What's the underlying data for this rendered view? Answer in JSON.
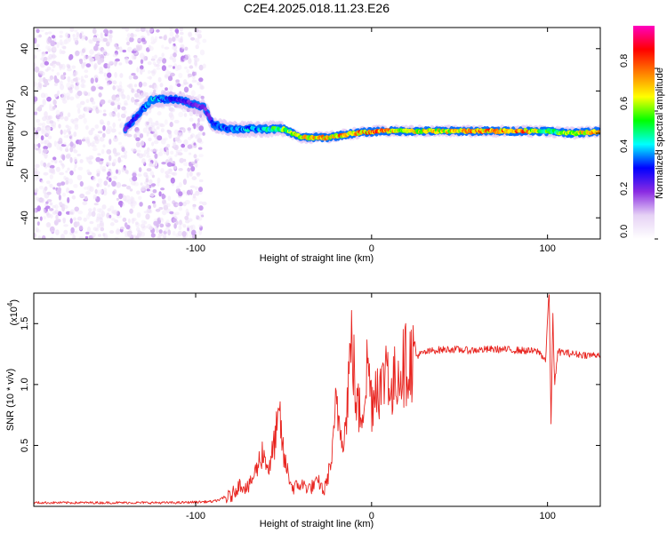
{
  "title": "C2E4.2025.018.11.23.E26",
  "chart_data": [
    {
      "type": "heatmap",
      "title": "C2E4.2025.018.11.23.E26",
      "xlabel": "Height of straight line (km)",
      "ylabel": "Frequency (Hz)",
      "xlim": [
        -192,
        130
      ],
      "ylim": [
        -50,
        50
      ],
      "x_ticks": [
        -100,
        0,
        100
      ],
      "y_ticks": [
        -40,
        -20,
        0,
        20,
        40
      ],
      "grid": false,
      "colorbar": {
        "label": "Normalized spectral amplitude",
        "range": [
          0,
          1
        ],
        "ticks": [
          "0.0",
          "0.2",
          "0.4",
          "0.6",
          "0.8"
        ],
        "tick_values": [
          0,
          0.2,
          0.4,
          0.6,
          0.8
        ],
        "colors": [
          "#ffffff",
          "#e6d2f5",
          "#8a2be2",
          "#0000ff",
          "#00ffff",
          "#00ff00",
          "#ffff00",
          "#ff8000",
          "#ff0000",
          "#ff00c0"
        ]
      },
      "noise_region": {
        "x_from": -192,
        "x_to": -95,
        "freq_from": -50,
        "freq_to": 50,
        "amplitude": 0.12
      },
      "ridge": {
        "points": [
          {
            "x": -140,
            "freq": 2,
            "amp": 0.3
          },
          {
            "x": -125,
            "freq": 16,
            "amp": 0.45
          },
          {
            "x": -110,
            "freq": 16,
            "amp": 0.3
          },
          {
            "x": -95,
            "freq": 12,
            "amp": 0.25
          },
          {
            "x": -90,
            "freq": 4,
            "amp": 0.35
          },
          {
            "x": -80,
            "freq": 2,
            "amp": 0.4
          },
          {
            "x": -65,
            "freq": 2,
            "amp": 0.45
          },
          {
            "x": -50,
            "freq": 2,
            "amp": 0.6
          },
          {
            "x": -40,
            "freq": -2,
            "amp": 0.7
          },
          {
            "x": -25,
            "freq": -2,
            "amp": 0.75
          },
          {
            "x": -10,
            "freq": 0,
            "amp": 0.8
          },
          {
            "x": 5,
            "freq": 1,
            "amp": 0.85
          },
          {
            "x": 20,
            "freq": 1,
            "amp": 0.7
          },
          {
            "x": 40,
            "freq": 1,
            "amp": 0.7
          },
          {
            "x": 60,
            "freq": 1,
            "amp": 0.8
          },
          {
            "x": 85,
            "freq": 1,
            "amp": 0.85
          },
          {
            "x": 100,
            "freq": 1,
            "amp": 0.55
          },
          {
            "x": 115,
            "freq": 0,
            "amp": 0.7
          },
          {
            "x": 130,
            "freq": 1,
            "amp": 0.75
          }
        ]
      }
    },
    {
      "type": "line",
      "xlabel": "Height of straight line (km)",
      "ylabel": "SNR (10 * v/v)",
      "y_multiplier": "(x10",
      "y_multiplier_exp": "4",
      "y_multiplier_close": ")",
      "xlim": [
        -192,
        130
      ],
      "ylim": [
        0,
        1.75
      ],
      "x_ticks": [
        -100,
        0,
        100
      ],
      "y_ticks": [
        0.5,
        1.0,
        1.5
      ],
      "y_tick_labels": [
        "0.5",
        "1.0",
        "1.5"
      ],
      "grid": false,
      "series": [
        {
          "name": "SNR",
          "color": "#e8241f",
          "points": [
            [
              -192,
              0.03
            ],
            [
              -150,
              0.03
            ],
            [
              -110,
              0.03
            ],
            [
              -90,
              0.04
            ],
            [
              -80,
              0.08
            ],
            [
              -75,
              0.18
            ],
            [
              -70,
              0.15
            ],
            [
              -65,
              0.32
            ],
            [
              -62,
              0.45
            ],
            [
              -58,
              0.3
            ],
            [
              -55,
              0.55
            ],
            [
              -52,
              0.72
            ],
            [
              -50,
              0.4
            ],
            [
              -47,
              0.25
            ],
            [
              -45,
              0.15
            ],
            [
              -40,
              0.18
            ],
            [
              -35,
              0.15
            ],
            [
              -30,
              0.2
            ],
            [
              -27,
              0.12
            ],
            [
              -24,
              0.3
            ],
            [
              -22,
              0.45
            ],
            [
              -20,
              0.88
            ],
            [
              -18,
              0.65
            ],
            [
              -15,
              0.6
            ],
            [
              -13,
              1.08
            ],
            [
              -11,
              1.38
            ],
            [
              -9,
              0.85
            ],
            [
              -6,
              0.75
            ],
            [
              -4,
              0.95
            ],
            [
              -2,
              1.2
            ],
            [
              0,
              0.85
            ],
            [
              3,
              1.05
            ],
            [
              6,
              0.95
            ],
            [
              9,
              1.28
            ],
            [
              11,
              0.85
            ],
            [
              14,
              1.1
            ],
            [
              18,
              1.15
            ],
            [
              22,
              1.2
            ],
            [
              26,
              1.24
            ],
            [
              30,
              1.26
            ],
            [
              35,
              1.28
            ],
            [
              45,
              1.29
            ],
            [
              55,
              1.28
            ],
            [
              70,
              1.29
            ],
            [
              85,
              1.28
            ],
            [
              95,
              1.27
            ],
            [
              99,
              1.2
            ],
            [
              100,
              1.55
            ],
            [
              101,
              1.75
            ],
            [
              102,
              0.65
            ],
            [
              103,
              1.6
            ],
            [
              104,
              1.0
            ],
            [
              106,
              1.27
            ],
            [
              115,
              1.25
            ],
            [
              125,
              1.24
            ],
            [
              130,
              1.25
            ]
          ]
        }
      ]
    }
  ]
}
